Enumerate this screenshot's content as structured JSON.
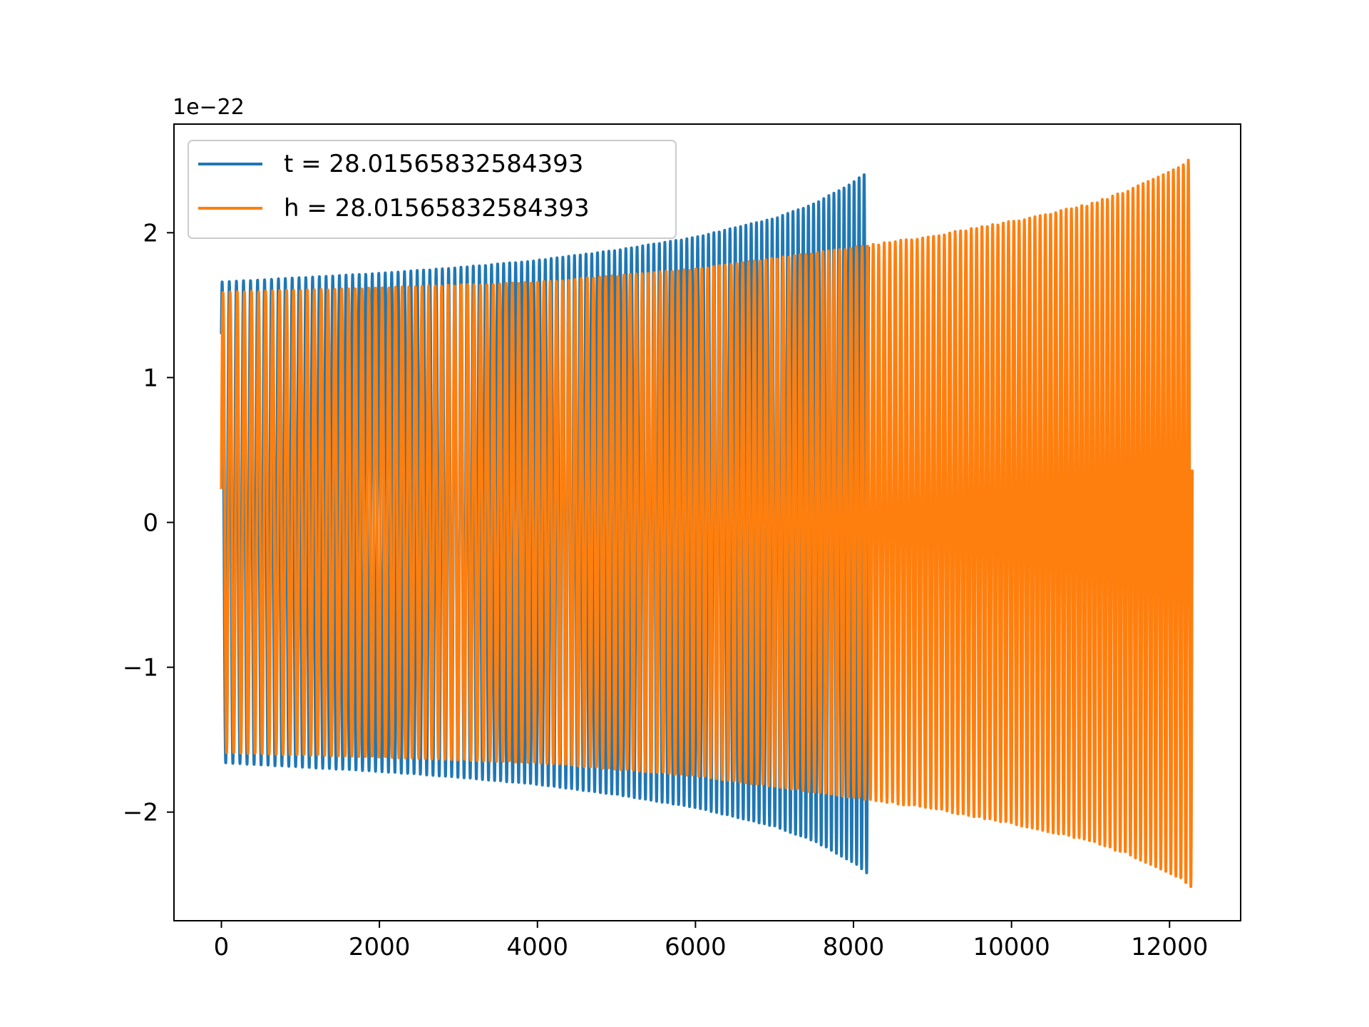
{
  "chart_data": {
    "type": "line",
    "title": "",
    "xlabel": "",
    "ylabel": "",
    "y_offset_label": "1e−22",
    "xlim": [
      -600,
      12900
    ],
    "ylim": [
      -2.75,
      2.75
    ],
    "x_ticks": [
      0,
      2000,
      4000,
      6000,
      8000,
      10000,
      12000
    ],
    "x_tick_labels": [
      "0",
      "2000",
      "4000",
      "6000",
      "8000",
      "10000",
      "12000"
    ],
    "y_ticks": [
      -2,
      -1,
      0,
      1,
      2
    ],
    "y_tick_labels": [
      "−2",
      "−1",
      "0",
      "1",
      "2"
    ],
    "grid": false,
    "legend_position": "upper-left",
    "series": [
      {
        "name": "t = 28.01565832584393",
        "color": "#1f77b4",
        "x_range": [
          0,
          8191
        ],
        "start_value": 1.3,
        "envelope_x": [
          0,
          1000,
          2000,
          3000,
          4000,
          5000,
          6000,
          7000,
          7500,
          8000,
          8191
        ],
        "envelope_amplitude": [
          1.66,
          1.69,
          1.72,
          1.76,
          1.81,
          1.88,
          1.97,
          2.1,
          2.2,
          2.35,
          2.43
        ],
        "cycles": 110
      },
      {
        "name": "h = 28.01565832584393",
        "color": "#ff7f0e",
        "x_range": [
          0,
          12287
        ],
        "start_value": 0.23,
        "envelope_x": [
          0,
          2000,
          4000,
          6000,
          8000,
          9000,
          10000,
          11000,
          11500,
          12000,
          12287
        ],
        "envelope_amplitude": [
          1.59,
          1.62,
          1.66,
          1.75,
          1.9,
          1.98,
          2.08,
          2.2,
          2.3,
          2.42,
          2.52
        ],
        "cycles": 165
      }
    ]
  }
}
